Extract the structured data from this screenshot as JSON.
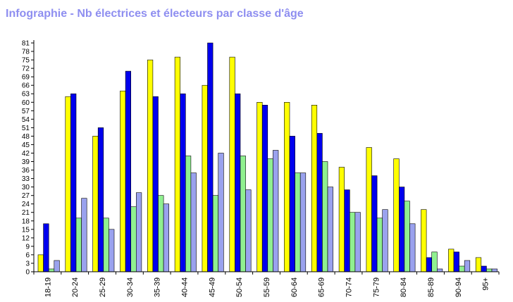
{
  "page": {
    "title": "Infographie - Nb électrices et électeurs par classe d'âge"
  },
  "colors": {
    "title": "#8e8ef0",
    "series": [
      "#ffff00",
      "#0000ee",
      "#90f090",
      "#9aa2ee"
    ],
    "bar_outline": "#000000",
    "axis": "#000000",
    "background": "#ffffff"
  },
  "chart_data": {
    "type": "bar",
    "title": "Infographie - Nb électrices et électeurs par classe d'âge",
    "xlabel": "",
    "ylabel": "",
    "ylim": [
      0,
      81
    ],
    "yticks": [
      0,
      3,
      6,
      9,
      12,
      15,
      18,
      21,
      24,
      27,
      30,
      33,
      36,
      39,
      42,
      45,
      48,
      51,
      54,
      57,
      60,
      63,
      66,
      69,
      72,
      75,
      78,
      81
    ],
    "grid": false,
    "legend": "none",
    "categories": [
      "18-19",
      "20-24",
      "25-29",
      "30-34",
      "35-39",
      "40-44",
      "45-49",
      "50-54",
      "55-59",
      "60-64",
      "65-69",
      "70-74",
      "75-79",
      "80-84",
      "85-89",
      "90-94",
      "95+"
    ],
    "series": [
      {
        "values": [
          6,
          62,
          48,
          64,
          75,
          76,
          66,
          76,
          60,
          60,
          59,
          37,
          44,
          40,
          22,
          8,
          5
        ]
      },
      {
        "values": [
          17,
          63,
          51,
          71,
          62,
          63,
          81,
          63,
          59,
          48,
          49,
          29,
          34,
          30,
          5,
          7,
          2
        ]
      },
      {
        "values": [
          1,
          19,
          19,
          23,
          27,
          41,
          27,
          41,
          40,
          35,
          39,
          21,
          19,
          25,
          7,
          2,
          1
        ]
      },
      {
        "values": [
          4,
          26,
          15,
          28,
          24,
          35,
          42,
          29,
          43,
          35,
          30,
          21,
          22,
          17,
          1,
          4,
          1
        ]
      }
    ]
  }
}
